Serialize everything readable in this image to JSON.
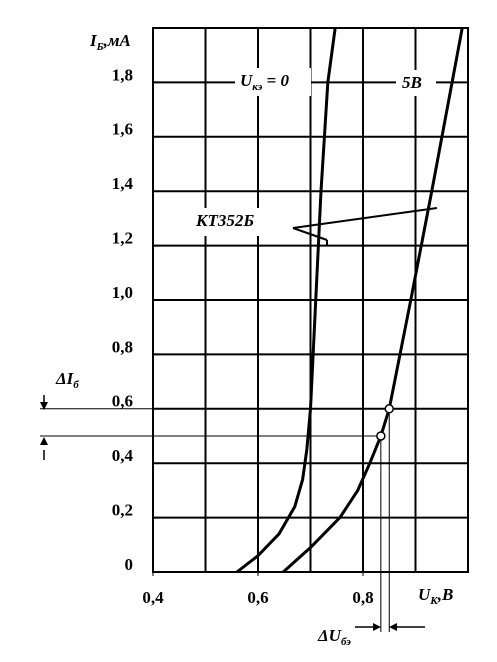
{
  "chart_data": {
    "type": "line",
    "ylabel": [
      "I",
      "Б",
      ",мА"
    ],
    "xlabel": [
      "U",
      "К",
      ",В"
    ],
    "xlim": [
      0.4,
      1.0
    ],
    "ylim": [
      0,
      2.0
    ],
    "xticks": [
      {
        "value": 0.4,
        "label": "0,4"
      },
      {
        "value": 0.6,
        "label": "0,6"
      },
      {
        "value": 0.8,
        "label": "0,8"
      }
    ],
    "xgrid": [
      0.5,
      0.6,
      0.7,
      0.8,
      0.9
    ],
    "yticks": [
      0,
      {
        "value": 0.2,
        "label": "0,2"
      },
      {
        "value": 0.4,
        "label": "0,4"
      },
      {
        "value": 0.6,
        "label": "0,6"
      },
      {
        "value": 0.8,
        "label": "0,8"
      },
      {
        "value": 1.0,
        "label": "1,0"
      },
      {
        "value": 1.2,
        "label": "1,2"
      },
      {
        "value": 1.4,
        "label": "1,4"
      },
      {
        "value": 1.6,
        "label": "1,6"
      },
      {
        "value": 1.8,
        "label": "1,8"
      }
    ],
    "grid": true,
    "series": [
      {
        "name": [
          "U",
          "кэ",
          " = 0"
        ],
        "color": "#000000",
        "x": [
          0.56,
          0.6,
          0.64,
          0.67,
          0.685,
          0.693,
          0.7,
          0.71,
          0.72,
          0.733,
          0.747
        ],
        "values": [
          0,
          0.06,
          0.14,
          0.24,
          0.34,
          0.45,
          0.6,
          1.0,
          1.4,
          1.8,
          2.0
        ]
      },
      {
        "name": "5В",
        "color": "#000000",
        "x": [
          0.648,
          0.7,
          0.756,
          0.79,
          0.813,
          0.834,
          0.85,
          0.891,
          0.931,
          0.96,
          0.989
        ],
        "values": [
          0,
          0.09,
          0.2,
          0.3,
          0.4,
          0.5,
          0.6,
          1.0,
          1.4,
          1.7,
          2.0
        ]
      }
    ],
    "points": {
      "x": [
        0.834,
        0.85
      ],
      "values": [
        0.5,
        0.6
      ]
    },
    "device": "КТ352Б",
    "delta_i": [
      "ΔI",
      "б"
    ],
    "delta_u": [
      "ΔU",
      "бэ"
    ]
  }
}
